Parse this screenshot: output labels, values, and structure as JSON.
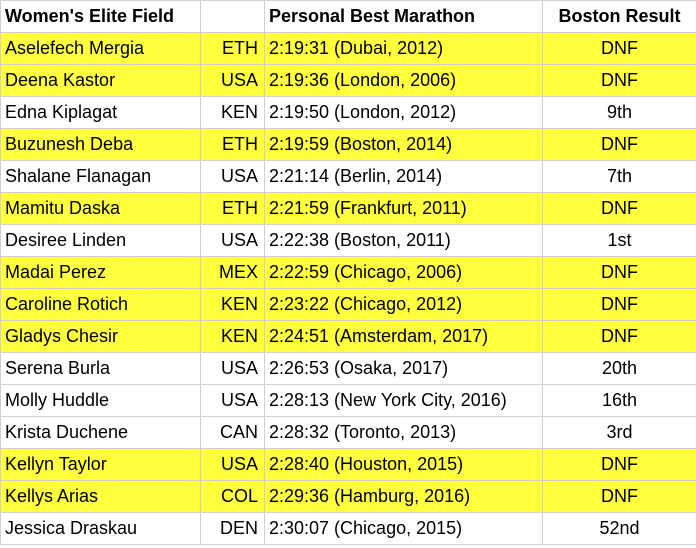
{
  "header": {
    "field": "Women's Elite Field",
    "country": "",
    "pb": "Personal Best Marathon",
    "result": "Boston Result"
  },
  "highlight_color": "#ffff3c",
  "rows": [
    {
      "name": "Aselefech Mergia",
      "country": "ETH",
      "pb": "2:19:31 (Dubai, 2012)",
      "result": "DNF",
      "highlighted": true
    },
    {
      "name": "Deena Kastor",
      "country": "USA",
      "pb": "2:19:36 (London, 2006)",
      "result": "DNF",
      "highlighted": true
    },
    {
      "name": "Edna Kiplagat",
      "country": "KEN",
      "pb": "2:19:50 (London, 2012)",
      "result": "9th",
      "highlighted": false
    },
    {
      "name": "Buzunesh Deba",
      "country": "ETH",
      "pb": "2:19:59 (Boston, 2014)",
      "result": "DNF",
      "highlighted": true
    },
    {
      "name": "Shalane Flanagan",
      "country": "USA",
      "pb": "2:21:14 (Berlin, 2014)",
      "result": "7th",
      "highlighted": false
    },
    {
      "name": "Mamitu Daska",
      "country": "ETH",
      "pb": "2:21:59 (Frankfurt, 2011)",
      "result": "DNF",
      "highlighted": true
    },
    {
      "name": "Desiree Linden",
      "country": "USA",
      "pb": "2:22:38 (Boston, 2011)",
      "result": "1st",
      "highlighted": false
    },
    {
      "name": "Madai Perez",
      "country": "MEX",
      "pb": "2:22:59 (Chicago, 2006)",
      "result": "DNF",
      "highlighted": true
    },
    {
      "name": "Caroline Rotich",
      "country": "KEN",
      "pb": "2:23:22 (Chicago, 2012)",
      "result": "DNF",
      "highlighted": true
    },
    {
      "name": "Gladys Chesir",
      "country": "KEN",
      "pb": "2:24:51 (Amsterdam, 2017)",
      "result": "DNF",
      "highlighted": true
    },
    {
      "name": "Serena Burla",
      "country": "USA",
      "pb": "2:26:53 (Osaka, 2017)",
      "result": "20th",
      "highlighted": false
    },
    {
      "name": "Molly Huddle",
      "country": "USA",
      "pb": "2:28:13 (New York City, 2016)",
      "result": "16th",
      "highlighted": false
    },
    {
      "name": "Krista Duchene",
      "country": "CAN",
      "pb": "2:28:32 (Toronto, 2013)",
      "result": "3rd",
      "highlighted": false
    },
    {
      "name": "Kellyn Taylor",
      "country": "USA",
      "pb": "2:28:40 (Houston, 2015)",
      "result": "DNF",
      "highlighted": true
    },
    {
      "name": "Kellys Arias",
      "country": "COL",
      "pb": "2:29:36 (Hamburg, 2016)",
      "result": "DNF",
      "highlighted": true
    },
    {
      "name": "Jessica Draskau",
      "country": "DEN",
      "pb": "2:30:07 (Chicago, 2015)",
      "result": "52nd",
      "highlighted": false
    }
  ]
}
